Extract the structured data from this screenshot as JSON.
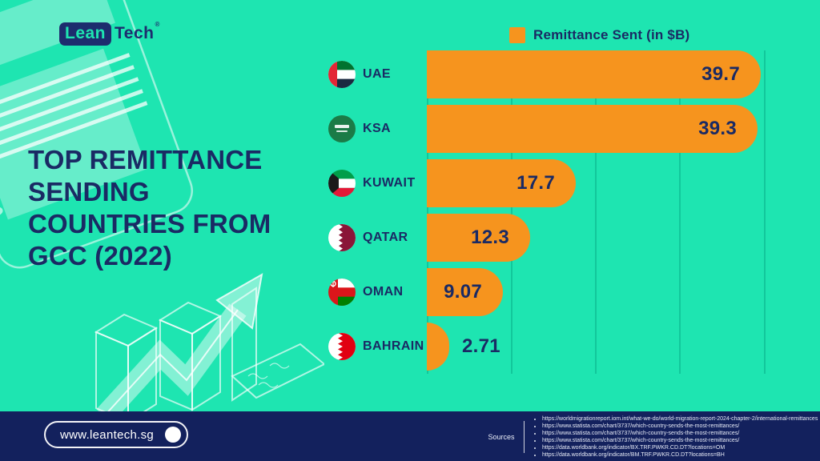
{
  "brand": {
    "logo_lean": "Lean",
    "logo_tech": "Tech",
    "registered_mark": "®"
  },
  "title": "TOP REMITTANCE SENDING COUNTRIES FROM GCC (2022)",
  "title_lines": [
    "TOP REMITTANCE",
    "SENDING",
    "COUNTRIES FROM",
    "GCC (2022)"
  ],
  "legend": {
    "label": "Remittance Sent (in $B)"
  },
  "colors": {
    "background": "#1EE5B1",
    "bar": "#F6941E",
    "navy_text": "#1A2A64",
    "footer_background": "#13215D",
    "gridline": "#12C79B"
  },
  "chart_data": {
    "type": "bar",
    "orientation": "horizontal",
    "title": "Remittance Sent (in $B)",
    "legend_position": "top",
    "xlim": [
      0,
      40
    ],
    "gridline_values": [
      0,
      10,
      20,
      30,
      40
    ],
    "grid": "vertical-lines",
    "categories": [
      "UAE",
      "KSA",
      "KUWAIT",
      "QATAR",
      "OMAN",
      "BAHRAIN"
    ],
    "values": [
      39.7,
      39.3,
      17.7,
      12.3,
      9.07,
      2.71
    ],
    "rows": [
      {
        "country": "UAE",
        "flag": "uae-flag-icon",
        "value": 39.7,
        "label": "39.7"
      },
      {
        "country": "KSA",
        "flag": "ksa-flag-icon",
        "value": 39.3,
        "label": "39.3"
      },
      {
        "country": "KUWAIT",
        "flag": "kuwait-flag-icon",
        "value": 17.7,
        "label": "17.7"
      },
      {
        "country": "QATAR",
        "flag": "qatar-flag-icon",
        "value": 12.3,
        "label": "12.3"
      },
      {
        "country": "OMAN",
        "flag": "oman-flag-icon",
        "value": 9.07,
        "label": "9.07"
      },
      {
        "country": "BAHRAIN",
        "flag": "bahrain-flag-icon",
        "value": 2.71,
        "label": "2.71"
      }
    ]
  },
  "footer": {
    "website": "www.leantech.sg",
    "sources_label": "Sources",
    "sources": [
      "https://worldmigrationreport.iom.int/what-we-do/world-migration-report-2024-chapter-2/international-remittances",
      "https://www.statista.com/chart/3737/which-country-sends-the-most-remittances/",
      "https://www.statista.com/chart/3737/which-country-sends-the-most-remittances/",
      "https://www.statista.com/chart/3737/which-country-sends-the-most-remittances/",
      "https://data.worldbank.org/indicator/BX.TRF.PWKR.CD.DT?locations=OM",
      "https://data.worldbank.org/indicator/BM.TRF.PWKR.CD.DT?locations=BH"
    ]
  }
}
